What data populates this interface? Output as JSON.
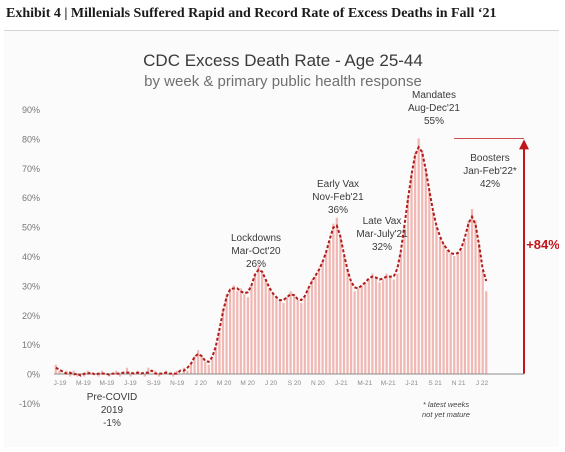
{
  "exhibit_title": "Exhibit 4 | Millenials Suffered Rapid and Record Rate of Excess Deaths in Fall ‘21",
  "chart_data": {
    "type": "bar",
    "title": "CDC Excess Death Rate - Age 25-44",
    "subtitle": "by week & primary public health response",
    "xlabel": "",
    "ylabel": "",
    "ylim": [
      -10,
      90
    ],
    "yticks": [
      "-10%",
      "0%",
      "10%",
      "20%",
      "30%",
      "40%",
      "50%",
      "60%",
      "70%",
      "80%",
      "90%"
    ],
    "grid": false,
    "x_tick_labels": [
      "J-19",
      "M-19",
      "M-19",
      "J-19",
      "S-19",
      "N-19",
      "J 20",
      "M 20",
      "M 20",
      "J 20",
      "S 20",
      "N 20",
      "J-21",
      "M-21",
      "M-21",
      "J-21",
      "S 21",
      "N 21",
      "J 22"
    ],
    "weekly_values": [
      3,
      1,
      0,
      1,
      -1,
      1,
      -1,
      0,
      -1,
      1,
      0,
      0,
      -1,
      1,
      0,
      -1,
      0,
      1,
      -1,
      0,
      2,
      -1,
      0,
      1,
      0,
      -1,
      2,
      0,
      1,
      -1,
      0,
      1,
      0,
      -1,
      1,
      0,
      2,
      1,
      3,
      6,
      8,
      6,
      4,
      3,
      5,
      9,
      14,
      22,
      27,
      29,
      30,
      28,
      29,
      27,
      26,
      30,
      34,
      37,
      35,
      32,
      29,
      27,
      26,
      25,
      24,
      26,
      28,
      27,
      25,
      24,
      26,
      29,
      32,
      33,
      35,
      38,
      41,
      45,
      51,
      53,
      47,
      40,
      35,
      31,
      28,
      29,
      30,
      31,
      32,
      34,
      33,
      31,
      32,
      34,
      33,
      32,
      34,
      41,
      50,
      60,
      68,
      75,
      80,
      76,
      70,
      62,
      55,
      50,
      46,
      44,
      42,
      41,
      40,
      41,
      42,
      45,
      52,
      56,
      52,
      44,
      35,
      28
    ],
    "series": [
      {
        "role": "weekly",
        "color": "#f1b7b3"
      },
      {
        "role": "trend",
        "style": "dashed",
        "color": "#b01c1c"
      }
    ],
    "annotations": [
      {
        "lines": [
          "Pre-COVID",
          "2019",
          "-1%"
        ]
      },
      {
        "lines": [
          "Lockdowns",
          "Mar-Oct'20",
          "26%"
        ]
      },
      {
        "lines": [
          "Early Vax",
          "Nov-Feb'21",
          "36%"
        ]
      },
      {
        "lines": [
          "Late Vax",
          "Mar-July'21",
          "32%"
        ]
      },
      {
        "lines": [
          "Mandates",
          "Aug-Dec'21",
          "55%"
        ]
      },
      {
        "lines": [
          "Boosters",
          "Jan-Feb'22*",
          "42%"
        ]
      }
    ],
    "change_label": "+84%",
    "change_color": "#c0161b",
    "footnote": [
      "* latest weeks",
      "not yet mature"
    ]
  }
}
